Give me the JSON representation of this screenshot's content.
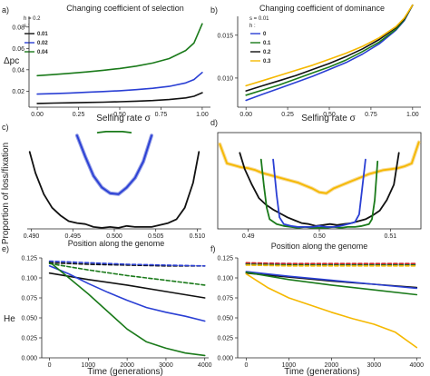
{
  "figure": {
    "panels": [
      {
        "label": "a)",
        "title": "Changing coefficient of selection",
        "ylabel": "Δpc",
        "xlabel": "Selfing rate σ"
      },
      {
        "label": "b)",
        "title": "Changing coefficient of dominance",
        "xlabel": "Selfing rate σ"
      },
      {
        "label": "c)",
        "ylabel": "Proportion of loss/fixation",
        "xlabel": "Position along the genome"
      },
      {
        "label": "d)",
        "xlabel": "Position along the genome"
      },
      {
        "label": "e)",
        "ylabel": "He",
        "xlabel": "Time (generations)"
      },
      {
        "label": "f)",
        "xlabel": "Time (generations)"
      }
    ]
  },
  "chart_data": [
    {
      "panel": "a)",
      "type": "line",
      "title": "Changing coefficient of selection",
      "xlabel": "Selfing rate σ",
      "ylabel": "Δpc",
      "xlim": [
        -0.05,
        1.05
      ],
      "ylim": [
        0.005,
        0.09
      ],
      "xticks": [
        "0.00",
        "0.25",
        "0.50",
        "0.75",
        "1.00"
      ],
      "yticks": [
        "0.02",
        "0.04",
        "0.06",
        "0.08"
      ],
      "legend": {
        "header": "h = 0.2",
        "subheader": "s :",
        "position": "top-left"
      },
      "series": [
        {
          "name": "0.01",
          "color": "#111111",
          "x": [
            0,
            0.1,
            0.2,
            0.3,
            0.4,
            0.5,
            0.6,
            0.7,
            0.8,
            0.9,
            0.95,
            1.0
          ],
          "y": [
            0.0085,
            0.0088,
            0.0091,
            0.0094,
            0.0097,
            0.0101,
            0.0106,
            0.0112,
            0.0121,
            0.0137,
            0.0152,
            0.0185
          ]
        },
        {
          "name": "0.02",
          "color": "#2a3fd4",
          "x": [
            0,
            0.1,
            0.2,
            0.3,
            0.4,
            0.5,
            0.6,
            0.7,
            0.8,
            0.9,
            0.95,
            1.0
          ],
          "y": [
            0.0172,
            0.0177,
            0.0183,
            0.0189,
            0.0196,
            0.0204,
            0.0214,
            0.0227,
            0.0245,
            0.0277,
            0.0308,
            0.0375
          ]
        },
        {
          "name": "0.04",
          "color": "#1a7a1a",
          "x": [
            0,
            0.1,
            0.2,
            0.3,
            0.4,
            0.5,
            0.6,
            0.7,
            0.8,
            0.9,
            0.95,
            1.0
          ],
          "y": [
            0.0345,
            0.0355,
            0.0367,
            0.038,
            0.0395,
            0.0412,
            0.0434,
            0.0463,
            0.0505,
            0.058,
            0.065,
            0.083
          ]
        }
      ]
    },
    {
      "panel": "b)",
      "type": "line",
      "title": "Changing coefficient of dominance",
      "xlabel": "Selfing rate σ",
      "xlim": [
        -0.05,
        1.05
      ],
      "ylim": [
        0.0066,
        0.0172
      ],
      "xticks": [
        "0.00",
        "0.25",
        "0.50",
        "0.75",
        "1.00"
      ],
      "yticks": [
        "0.010",
        "0.015"
      ],
      "legend": {
        "header": "s = 0.01",
        "subheader": "h :",
        "position": "top-left"
      },
      "series": [
        {
          "name": "0",
          "color": "#2a3fd4",
          "x": [
            0,
            0.1,
            0.2,
            0.3,
            0.4,
            0.5,
            0.6,
            0.7,
            0.8,
            0.9,
            0.95,
            1.0
          ],
          "y": [
            0.0074,
            0.0081,
            0.0088,
            0.0095,
            0.0102,
            0.011,
            0.0118,
            0.0128,
            0.014,
            0.0156,
            0.0167,
            0.0185
          ]
        },
        {
          "name": "0.1",
          "color": "#1a7a1a",
          "x": [
            0,
            0.1,
            0.2,
            0.3,
            0.4,
            0.5,
            0.6,
            0.7,
            0.8,
            0.9,
            0.95,
            1.0
          ],
          "y": [
            0.008,
            0.0086,
            0.0092,
            0.0099,
            0.0106,
            0.0113,
            0.0121,
            0.0131,
            0.0142,
            0.0157,
            0.0168,
            0.0185
          ]
        },
        {
          "name": "0.2",
          "color": "#111111",
          "x": [
            0,
            0.1,
            0.2,
            0.3,
            0.4,
            0.5,
            0.6,
            0.7,
            0.8,
            0.9,
            0.95,
            1.0
          ],
          "y": [
            0.0085,
            0.0091,
            0.0097,
            0.0103,
            0.011,
            0.0117,
            0.0125,
            0.0134,
            0.0145,
            0.0159,
            0.0169,
            0.0185
          ]
        },
        {
          "name": "0.3",
          "color": "#f5b800",
          "x": [
            0,
            0.1,
            0.2,
            0.3,
            0.4,
            0.5,
            0.6,
            0.7,
            0.8,
            0.9,
            0.95,
            1.0
          ],
          "y": [
            0.0091,
            0.0097,
            0.0103,
            0.0109,
            0.0115,
            0.0122,
            0.0129,
            0.0137,
            0.0147,
            0.016,
            0.017,
            0.0185
          ]
        }
      ]
    },
    {
      "panel": "c)",
      "type": "line",
      "xlabel": "Position along the genome",
      "ylabel": "Proportion of loss/fixation",
      "xlim": [
        0.4895,
        0.5105
      ],
      "ylim": [
        0,
        1
      ],
      "xticks": [
        "0.490",
        "0.495",
        "0.500",
        "0.505",
        "0.510"
      ],
      "series": [
        {
          "color": "#111111",
          "x": [
            0.4898,
            0.4905,
            0.4915,
            0.4925,
            0.4935,
            0.4945,
            0.4955,
            0.4965,
            0.4975,
            0.4985,
            0.4995,
            0.5005,
            0.5015,
            0.5025,
            0.5035,
            0.5045,
            0.5055,
            0.5065,
            0.5075,
            0.5085,
            0.5095,
            0.5102
          ],
          "y": [
            0.8,
            0.58,
            0.36,
            0.22,
            0.14,
            0.08,
            0.06,
            0.05,
            0.02,
            0.01,
            0.02,
            0.01,
            0.03,
            0.02,
            0.02,
            0.02,
            0.04,
            0.06,
            0.1,
            0.22,
            0.48,
            0.8
          ]
        },
        {
          "color": "#2a3fd4",
          "x": [
            0.4955,
            0.4965,
            0.4975,
            0.4985,
            0.4995,
            0.5005,
            0.5015,
            0.5025,
            0.5035,
            0.5045
          ],
          "y": [
            0.97,
            0.75,
            0.55,
            0.43,
            0.37,
            0.36,
            0.43,
            0.53,
            0.7,
            0.97
          ]
        },
        {
          "color": "#1a7a1a",
          "x": [
            0.498,
            0.499,
            0.5,
            0.501,
            0.502
          ],
          "y": [
            1.0,
            1.01,
            1.01,
            1.01,
            1.0
          ]
        }
      ]
    },
    {
      "panel": "d)",
      "type": "line",
      "xlabel": "Position along the genome",
      "xlim": [
        0.4857,
        0.5143
      ],
      "ylim": [
        0,
        1
      ],
      "xticks": [
        "0.49",
        "0.50",
        "0.51"
      ],
      "series": [
        {
          "color": "#f5b800",
          "x": [
            0.486,
            0.487,
            0.488,
            0.489,
            0.49,
            0.491,
            0.492,
            0.493,
            0.494,
            0.495,
            0.496,
            0.497,
            0.498,
            0.499,
            0.5,
            0.501,
            0.502,
            0.503,
            0.504,
            0.505,
            0.506,
            0.507,
            0.508,
            0.509,
            0.51,
            0.511,
            0.512,
            0.513,
            0.514
          ],
          "y": [
            0.88,
            0.68,
            0.66,
            0.64,
            0.63,
            0.61,
            0.58,
            0.56,
            0.54,
            0.52,
            0.5,
            0.48,
            0.45,
            0.42,
            0.38,
            0.37,
            0.42,
            0.45,
            0.48,
            0.51,
            0.54,
            0.57,
            0.59,
            0.61,
            0.62,
            0.63,
            0.65,
            0.68,
            0.9
          ]
        },
        {
          "color": "#111111",
          "x": [
            0.4888,
            0.4895,
            0.4905,
            0.4915,
            0.4925,
            0.4935,
            0.4945,
            0.4955,
            0.4965,
            0.4975,
            0.4985,
            0.4995,
            0.5005,
            0.5015,
            0.5025,
            0.5035,
            0.5045,
            0.5055,
            0.5065,
            0.5075,
            0.5085,
            0.5095,
            0.5105,
            0.5112
          ],
          "y": [
            0.79,
            0.62,
            0.46,
            0.32,
            0.25,
            0.2,
            0.16,
            0.12,
            0.09,
            0.06,
            0.05,
            0.03,
            0.04,
            0.05,
            0.04,
            0.05,
            0.06,
            0.08,
            0.1,
            0.14,
            0.19,
            0.3,
            0.46,
            0.79
          ]
        },
        {
          "color": "#1a7a1a",
          "x": [
            0.4918,
            0.4922,
            0.4926,
            0.493,
            0.494,
            0.495,
            0.496,
            0.497,
            0.498,
            0.499,
            0.5,
            0.501,
            0.502,
            0.503,
            0.504,
            0.505,
            0.506,
            0.507,
            0.5074,
            0.5078,
            0.5082
          ],
          "y": [
            0.72,
            0.45,
            0.22,
            0.1,
            0.05,
            0.03,
            0.02,
            0.01,
            0.02,
            0.01,
            0.01,
            0.01,
            0.02,
            0.01,
            0.02,
            0.02,
            0.03,
            0.05,
            0.1,
            0.3,
            0.7
          ]
        },
        {
          "color": "#2a3fd4",
          "x": [
            0.4935,
            0.494,
            0.4944,
            0.495,
            0.496,
            0.497,
            0.498,
            0.499,
            0.5,
            0.501,
            0.502,
            0.503,
            0.504,
            0.505,
            0.5056,
            0.506,
            0.5065
          ],
          "y": [
            0.72,
            0.35,
            0.12,
            0.05,
            0.03,
            0.02,
            0.02,
            0.02,
            0.03,
            0.02,
            0.02,
            0.03,
            0.05,
            0.07,
            0.15,
            0.4,
            0.72
          ]
        }
      ]
    },
    {
      "panel": "e)",
      "type": "line",
      "xlabel": "Time (generations)",
      "ylabel": "He",
      "xlim": [
        -200,
        4100
      ],
      "ylim": [
        0,
        0.125
      ],
      "xticks": [
        "0",
        "1000",
        "2000",
        "3000",
        "4000"
      ],
      "yticks": [
        "0.000",
        "0.025",
        "0.050",
        "0.075",
        "0.100",
        "0.125"
      ],
      "series": [
        {
          "color": "#111111",
          "dash": "solid",
          "x": [
            0,
            1000,
            2000,
            3000,
            4000
          ],
          "y": [
            0.106,
            0.098,
            0.091,
            0.083,
            0.075
          ]
        },
        {
          "color": "#2a3fd4",
          "dash": "solid",
          "x": [
            0,
            500,
            1000,
            1500,
            2000,
            2500,
            3000,
            3500,
            4000
          ],
          "y": [
            0.115,
            0.105,
            0.093,
            0.082,
            0.072,
            0.063,
            0.057,
            0.052,
            0.046
          ]
        },
        {
          "color": "#1a7a1a",
          "dash": "solid",
          "x": [
            0,
            500,
            1000,
            1500,
            2000,
            2500,
            3000,
            3500,
            4000
          ],
          "y": [
            0.12,
            0.1,
            0.08,
            0.058,
            0.036,
            0.02,
            0.012,
            0.006,
            0.003
          ]
        },
        {
          "color": "#111111",
          "dash": "dashed",
          "x": [
            0,
            1000,
            2000,
            3000,
            4000
          ],
          "y": [
            0.119,
            0.117,
            0.116,
            0.115,
            0.115
          ]
        },
        {
          "color": "#2a3fd4",
          "dash": "dashed",
          "x": [
            0,
            1000,
            2000,
            3000,
            4000
          ],
          "y": [
            0.121,
            0.119,
            0.117,
            0.116,
            0.115
          ]
        },
        {
          "color": "#1a7a1a",
          "dash": "dashed",
          "x": [
            0,
            1000,
            2000,
            3000,
            4000
          ],
          "y": [
            0.118,
            0.11,
            0.103,
            0.097,
            0.091
          ]
        }
      ]
    },
    {
      "panel": "f)",
      "type": "line",
      "xlabel": "Time (generations)",
      "xlim": [
        -200,
        4100
      ],
      "ylim": [
        0,
        0.125
      ],
      "xticks": [
        "0",
        "1000",
        "2000",
        "3000",
        "4000"
      ],
      "yticks": [
        "0.000",
        "0.025",
        "0.050",
        "0.075",
        "0.100",
        "0.125"
      ],
      "series": [
        {
          "color": "#111111",
          "dash": "solid",
          "x": [
            0,
            1000,
            2000,
            3000,
            4000
          ],
          "y": [
            0.106,
            0.101,
            0.096,
            0.092,
            0.088
          ]
        },
        {
          "color": "#2a3fd4",
          "dash": "solid",
          "x": [
            0,
            1000,
            2000,
            3000,
            4000
          ],
          "y": [
            0.108,
            0.102,
            0.097,
            0.092,
            0.087
          ]
        },
        {
          "color": "#1a7a1a",
          "dash": "solid",
          "x": [
            0,
            1000,
            2000,
            3000,
            4000
          ],
          "y": [
            0.107,
            0.098,
            0.091,
            0.085,
            0.079
          ]
        },
        {
          "color": "#f5b800",
          "dash": "solid",
          "x": [
            0,
            500,
            1000,
            1500,
            2000,
            2500,
            3000,
            3500,
            4000
          ],
          "y": [
            0.105,
            0.088,
            0.075,
            0.066,
            0.057,
            0.049,
            0.042,
            0.032,
            0.013
          ]
        },
        {
          "color": "#111111",
          "dash": "dashed",
          "x": [
            0,
            1000,
            2000,
            3000,
            4000
          ],
          "y": [
            0.118,
            0.117,
            0.117,
            0.117,
            0.117
          ]
        },
        {
          "color": "#2a3fd4",
          "dash": "dashed",
          "x": [
            0,
            1000,
            2000,
            3000,
            4000
          ],
          "y": [
            0.118,
            0.118,
            0.117,
            0.117,
            0.117
          ]
        },
        {
          "color": "#1a7a1a",
          "dash": "dashed",
          "x": [
            0,
            1000,
            2000,
            3000,
            4000
          ],
          "y": [
            0.117,
            0.116,
            0.116,
            0.116,
            0.116
          ]
        },
        {
          "color": "#f5b800",
          "dash": "dashed",
          "x": [
            0,
            1000,
            2000,
            3000,
            4000
          ],
          "y": [
            0.116,
            0.115,
            0.115,
            0.115,
            0.115
          ]
        },
        {
          "color": "#cc2222",
          "dash": "dashed",
          "x": [
            0,
            1000,
            2000,
            3000,
            4000
          ],
          "y": [
            0.119,
            0.118,
            0.118,
            0.118,
            0.118
          ]
        }
      ]
    }
  ]
}
